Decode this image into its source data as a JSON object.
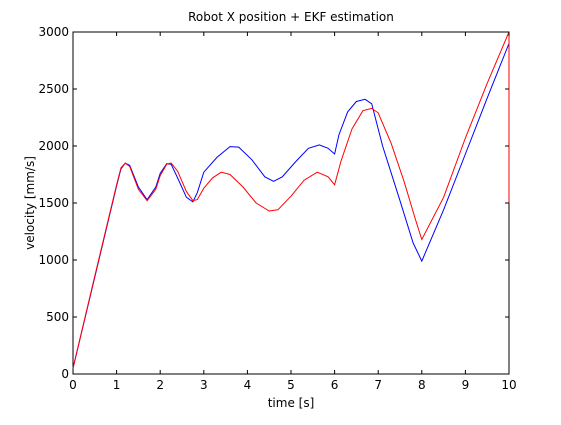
{
  "chart_data": {
    "type": "line",
    "title": "Robot X position + EKF estimation",
    "xlabel": "time [s]",
    "ylabel": "velocity [mm/s]",
    "xlim": [
      0,
      10
    ],
    "ylim": [
      0,
      3000
    ],
    "xticks": [
      0,
      1,
      2,
      3,
      4,
      5,
      6,
      7,
      8,
      9,
      10
    ],
    "yticks": [
      0,
      500,
      1000,
      1500,
      2000,
      2500,
      3000
    ],
    "grid": false,
    "legend": "none",
    "series": [
      {
        "color": "#0000ff",
        "x": [
          0,
          0.5,
          1.0,
          1.1,
          1.2,
          1.3,
          1.5,
          1.7,
          1.9,
          2.0,
          2.15,
          2.25,
          2.4,
          2.6,
          2.75,
          2.85,
          3.0,
          3.3,
          3.6,
          3.8,
          4.1,
          4.4,
          4.6,
          4.8,
          5.1,
          5.4,
          5.65,
          5.85,
          6.0,
          6.1,
          6.3,
          6.5,
          6.7,
          6.85,
          7.1,
          7.5,
          7.8,
          8.0,
          8.5,
          9.0,
          9.5,
          10.0
        ],
        "y": [
          50,
          850,
          1650,
          1800,
          1850,
          1830,
          1640,
          1530,
          1640,
          1760,
          1845,
          1840,
          1720,
          1550,
          1510,
          1590,
          1770,
          1900,
          1995,
          1990,
          1880,
          1730,
          1690,
          1730,
          1860,
          1980,
          2010,
          1980,
          1930,
          2100,
          2300,
          2390,
          2410,
          2370,
          2000,
          1520,
          1150,
          990,
          1440,
          1930,
          2420,
          2900
        ]
      },
      {
        "color": "#ff0000",
        "x": [
          0,
          0.5,
          1.0,
          1.1,
          1.2,
          1.3,
          1.5,
          1.7,
          1.9,
          2.0,
          2.15,
          2.25,
          2.4,
          2.6,
          2.75,
          2.85,
          3.0,
          3.2,
          3.4,
          3.6,
          3.9,
          4.2,
          4.5,
          4.7,
          5.0,
          5.3,
          5.6,
          5.85,
          6.0,
          6.15,
          6.4,
          6.65,
          6.85,
          7.0,
          7.3,
          7.6,
          7.85,
          8.0,
          8.5,
          9.0,
          9.5,
          10.0,
          10.0
        ],
        "y": [
          50,
          860,
          1660,
          1810,
          1850,
          1820,
          1620,
          1520,
          1620,
          1740,
          1840,
          1850,
          1780,
          1600,
          1520,
          1530,
          1630,
          1720,
          1770,
          1750,
          1640,
          1500,
          1430,
          1440,
          1560,
          1700,
          1770,
          1730,
          1660,
          1870,
          2150,
          2310,
          2330,
          2290,
          2020,
          1680,
          1360,
          1180,
          1550,
          2070,
          2550,
          3000,
          1500
        ]
      }
    ]
  }
}
